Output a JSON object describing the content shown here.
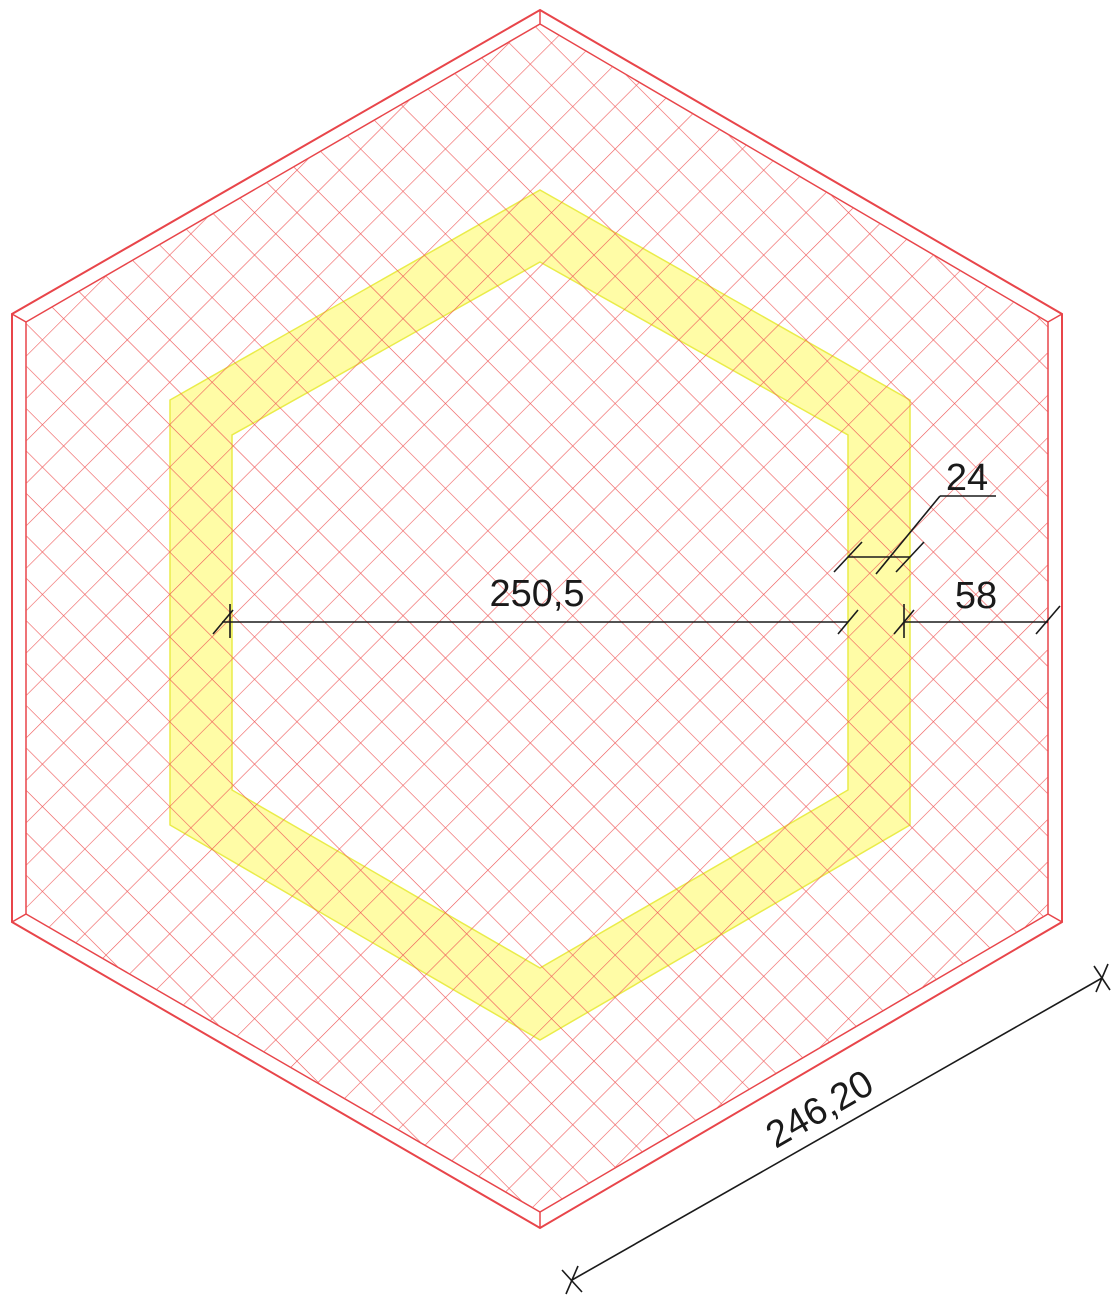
{
  "colors": {
    "background": "#ffffff",
    "outer_outline": "#e8454a",
    "hatch": "#ef5a5a",
    "ring_fill": "#fffca6",
    "ring_outline": "#eaec4a",
    "dimension": "#1a1a1a"
  },
  "dimensions": {
    "inner_width": "250,5",
    "ring_width": "24",
    "margin": "58",
    "side_length": "246,20"
  }
}
